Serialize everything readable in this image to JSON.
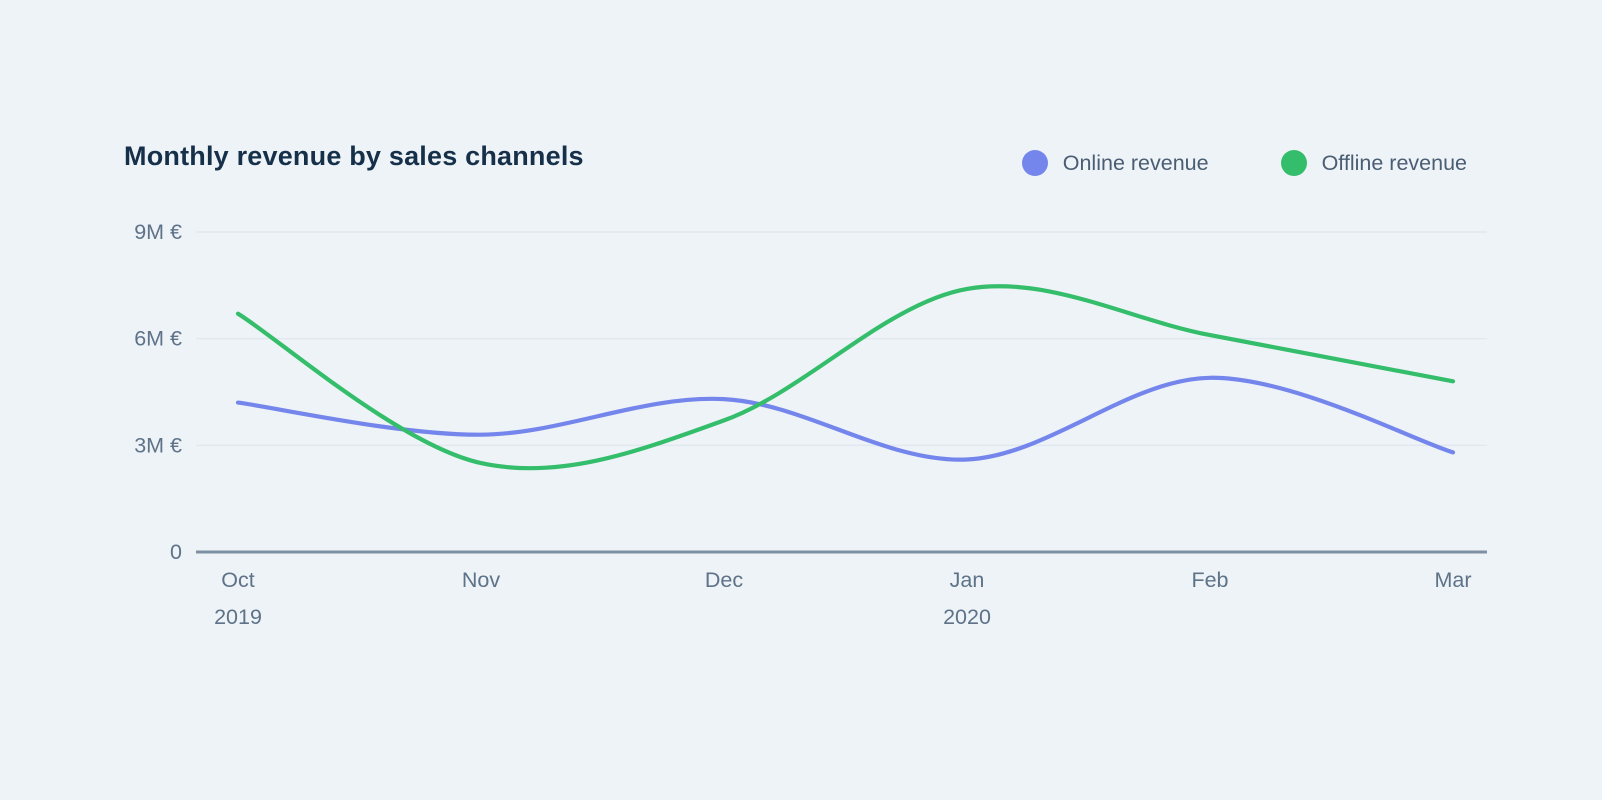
{
  "header": {
    "title": "Monthly revenue by sales channels"
  },
  "legend": {
    "items": [
      {
        "label": "Online revenue",
        "color": "#7486EB"
      },
      {
        "label": "Offline revenue",
        "color": "#34BD6A"
      }
    ]
  },
  "chart_data": {
    "type": "line",
    "smoothed": true,
    "title": "Monthly revenue by sales channels",
    "categories": [
      "Oct",
      "Nov",
      "Dec",
      "Jan",
      "Feb",
      "Mar"
    ],
    "year_labels": [
      {
        "text": "2019",
        "category_index": 0
      },
      {
        "text": "2020",
        "category_index": 3
      }
    ],
    "series": [
      {
        "name": "Online revenue",
        "color": "#7486EB",
        "values": [
          4.2,
          3.3,
          4.3,
          2.6,
          4.9,
          2.8
        ]
      },
      {
        "name": "Offline revenue",
        "color": "#34BD6A",
        "values": [
          6.7,
          2.5,
          3.7,
          7.4,
          6.1,
          4.8
        ]
      }
    ],
    "y_axis": {
      "unit": "M €",
      "min": 0,
      "max": 9,
      "ticks": [
        {
          "value": 9,
          "label": "9M €"
        },
        {
          "value": 6,
          "label": "6M €"
        },
        {
          "value": 3,
          "label": "3M €"
        },
        {
          "value": 0,
          "label": "0"
        }
      ]
    },
    "xlabel": "",
    "ylabel": "",
    "grid": true,
    "legend_position": "top-right"
  },
  "colors": {
    "background": "#EEF3F8",
    "title_text": "#16304A",
    "axis_label_text": "#5E7288",
    "legend_label_text": "#4A5D72",
    "gridline": "#E2E8EF",
    "axis_line": "#7D90A4"
  }
}
